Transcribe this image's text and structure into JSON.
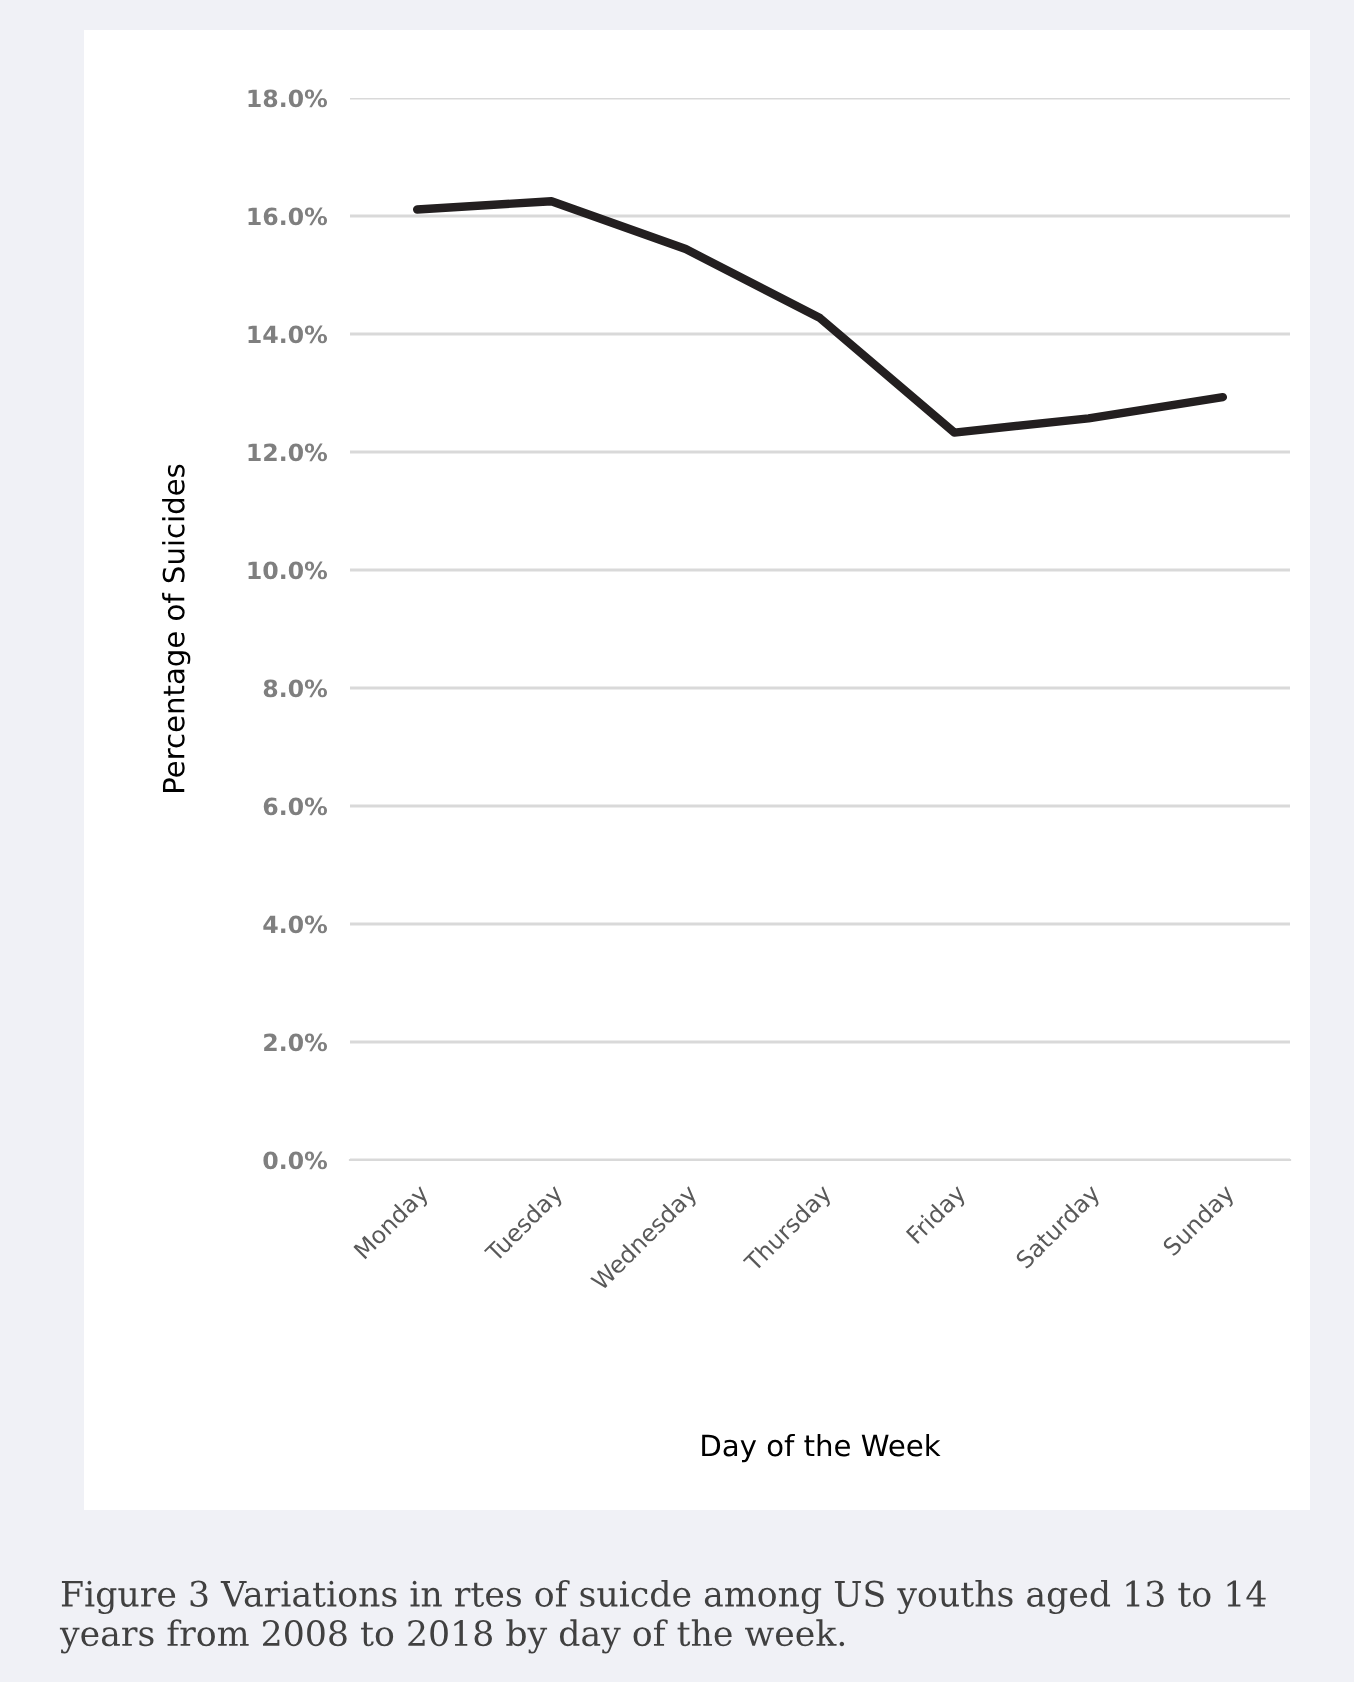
{
  "chart_data": {
    "type": "line",
    "categories": [
      "Monday",
      "Tuesday",
      "Wednesday",
      "Thursday",
      "Friday",
      "Saturday",
      "Sunday"
    ],
    "series": [
      {
        "color": "#231f20",
        "values": [
          16.11,
          16.25,
          15.44,
          14.27,
          12.33,
          12.57,
          12.93
        ]
      }
    ],
    "ylim": [
      0,
      18
    ],
    "yticks": [
      {
        "value": 0,
        "label": "0.0%"
      },
      {
        "value": 2,
        "label": "2.0%"
      },
      {
        "value": 4,
        "label": "4.0%"
      },
      {
        "value": 6,
        "label": "6.0%"
      },
      {
        "value": 8,
        "label": "8.0%"
      },
      {
        "value": 10,
        "label": "10.0%"
      },
      {
        "value": 12,
        "label": "12.0%"
      },
      {
        "value": 14,
        "label": "14.0%"
      },
      {
        "value": 16,
        "label": "16.0%"
      },
      {
        "value": 18,
        "label": "18.0%"
      }
    ],
    "xlabel": "Day of the Week",
    "ylabel": "Percentage of Suicides",
    "grid": "y",
    "marker": "none",
    "line_style": "solid",
    "annotations": [
      "Figure 3 Variations in rtes of suicde among US youths aged 13 to 14 years from 2008 to 2018 by day of the week."
    ]
  }
}
